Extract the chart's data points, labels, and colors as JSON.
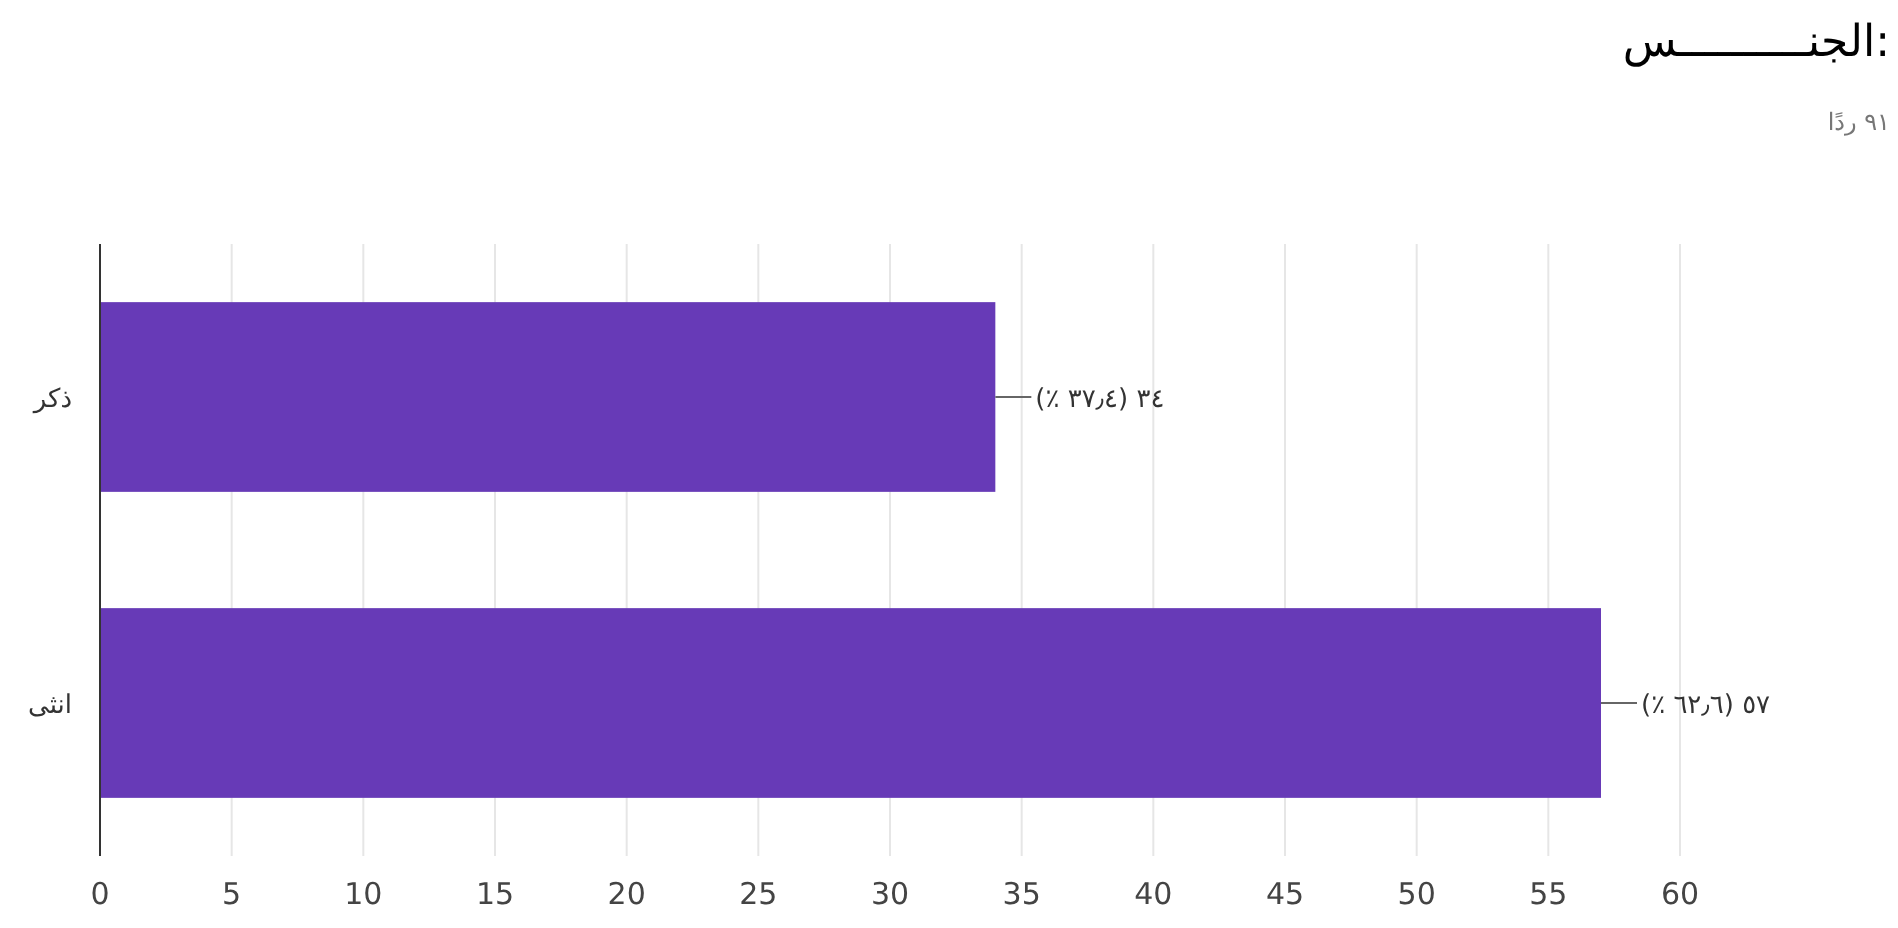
{
  "chart_data": {
    "type": "bar",
    "orientation": "horizontal",
    "title": "الجنــــــــــس:",
    "subtitle": "٩١ ردًا",
    "categories": [
      "ذكر",
      "انثى"
    ],
    "values": [
      34,
      57
    ],
    "color": "#673ab7",
    "value_labels": [
      "٣٤ (٣٧٫٤ ٪)",
      "٥٧ (٦٢٫٦ ٪)"
    ],
    "xlim": [
      0,
      60
    ],
    "xticks": [
      0,
      5,
      10,
      15,
      20,
      25,
      30,
      35,
      40,
      45,
      50,
      55,
      60
    ],
    "grid": "x"
  }
}
